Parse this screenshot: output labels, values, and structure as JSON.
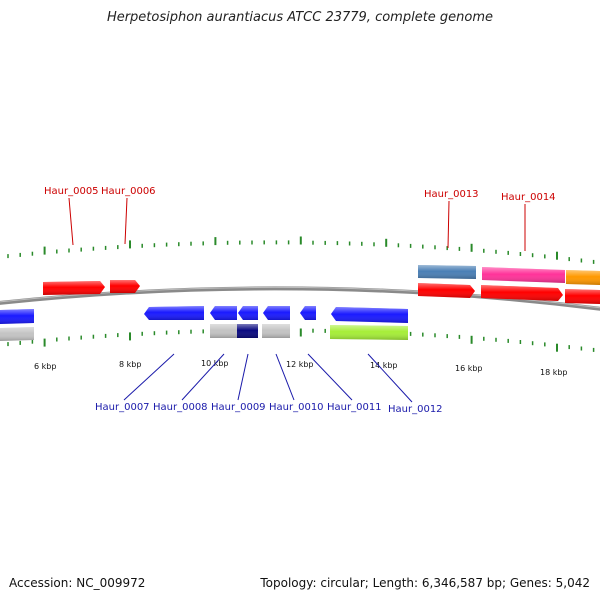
{
  "title": "Herpetosiphon aurantiacus ATCC 23779, complete genome",
  "accession": "Accession: NC_009972",
  "summary": "Topology: circular; Length: 6,346,587 bp; Genes: 5,042",
  "colors": {
    "backbone": "#8c8c8c",
    "tick": "#2a8a2a",
    "label_top": "#cc0000",
    "label_bottom": "#1a1aaa",
    "red": "#ff0000",
    "blue": "#1a1aff",
    "gray": "#c4c4c4",
    "navy": "#0a0a80",
    "lime": "#a6ee38",
    "steelblue": "#4a7fb5",
    "pink": "#ff3399",
    "orange": "#ff9900"
  },
  "kbp_labels": [
    "6 kbp",
    "8 kbp",
    "10 kbp",
    "12 kbp",
    "14 kbp",
    "16 kbp",
    "18 kbp"
  ],
  "top_gene_labels": [
    "Haur_0005",
    "Haur_0006",
    "Haur_0013",
    "Haur_0014"
  ],
  "bottom_gene_labels": [
    "Haur_0007",
    "Haur_0008",
    "Haur_0009",
    "Haur_0010",
    "Haur_0011",
    "Haur_0012"
  ]
}
